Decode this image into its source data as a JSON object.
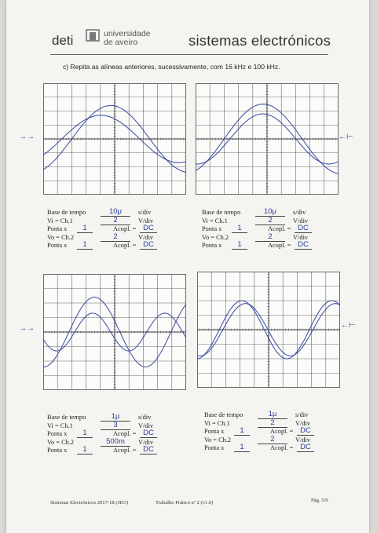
{
  "header": {
    "dept": "deti",
    "university_line1": "universidade",
    "university_line2": "de aveiro",
    "course": "sistemas electrónicos"
  },
  "instruction": "c) Repita as alíneas anteriores, sucessivamente, com 16 kHz e 100 kHz.",
  "labels": {
    "base": "Base de tempo",
    "sdiv": "s/div",
    "vi": "Vi = Ch.1",
    "vo": "Vo = Ch.2",
    "vdiv": "V/div",
    "ponta": "Ponta x",
    "acopl": "Acopl. ="
  },
  "panels": [
    {
      "timebase": "10μ",
      "vi_vdiv": "2",
      "vi_probe": "1",
      "vi_coupling": "DC",
      "vo_vdiv": "2",
      "vo_probe": "1",
      "vo_coupling": "DC"
    },
    {
      "timebase": "10μ",
      "vi_vdiv": "2",
      "vi_probe": "1",
      "vi_coupling": "DC",
      "vo_vdiv": "2",
      "vo_probe": "1",
      "vo_coupling": "DC"
    },
    {
      "timebase": "1μ",
      "vi_vdiv": "3",
      "vi_probe": "1",
      "vi_coupling": "DC",
      "vo_vdiv": "500m",
      "vo_probe": "1",
      "vo_coupling": "DC"
    },
    {
      "timebase": "1μ",
      "vi_vdiv": "2",
      "vi_probe": "1",
      "vi_coupling": "DC",
      "vo_vdiv": "2",
      "vo_probe": "1",
      "vo_coupling": "DC"
    }
  ],
  "traces": [
    {
      "a1": 2.4,
      "p1": 1.3,
      "c1": 2.0,
      "a2": 1.7,
      "p2": 1.3,
      "c2": 1.3
    },
    {
      "a1": 2.5,
      "p1": 1.3,
      "c1": 2.0,
      "a2": 1.8,
      "p2": 1.1,
      "c2": 2.4
    },
    {
      "a1": 2.4,
      "p1": 0.85,
      "c1": 1.8,
      "a2": 1.3,
      "p2": 0.6,
      "c2": 2.2
    },
    {
      "a1": 2.0,
      "p1": 0.75,
      "c1": 1.55,
      "a2": 1.8,
      "p2": 0.75,
      "c2": 1.8
    }
  ],
  "footer": {
    "left": "Sistemas Electrónicos 2017-18 (JEO)",
    "center": "Trabalho Prático nº 2 (v1.0)",
    "right": "Pág. 5/9"
  },
  "colors": {
    "ink": "#2a3b9a",
    "grid": "#6a6a6a"
  }
}
